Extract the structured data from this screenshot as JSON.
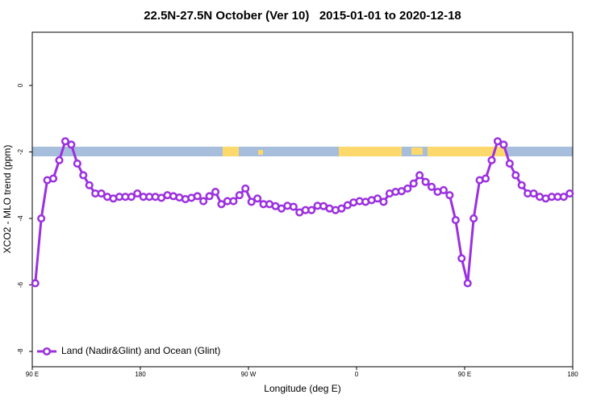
{
  "chart_data": {
    "type": "line",
    "title": "22.5N-27.5N October (Ver 10)   2015-01-01 to 2020-12-18",
    "x_label": "Longitude (deg E)",
    "y_label": "XCO2 - MLO trend (ppm)",
    "xlim": [
      90,
      540
    ],
    "ylim": [
      -8.46,
      1.6
    ],
    "xticks": [
      {
        "value": 90,
        "label": "90 E"
      },
      180,
      {
        "value": 270,
        "label": "90 W"
      },
      {
        "value": 360,
        "label": "0"
      },
      {
        "value": 450,
        "label": "90 E"
      },
      {
        "value": 540,
        "label": "180"
      }
    ],
    "yticks": [
      0,
      -2,
      -4,
      -6,
      -8
    ],
    "legend": "bottom-left",
    "x": [
      92.5,
      97.5,
      102.5,
      107.5,
      112.5,
      117.5,
      122.5,
      127.5,
      132.5,
      137.5,
      142.5,
      147.5,
      152.5,
      157.5,
      162.5,
      167.5,
      172.5,
      177.5,
      182.5,
      187.5,
      192.5,
      197.5,
      202.5,
      207.5,
      212.5,
      217.5,
      222.5,
      227.5,
      232.5,
      237.5,
      242.5,
      247.5,
      252.5,
      257.5,
      262.5,
      267.5,
      272.5,
      277.5,
      282.5,
      287.5,
      292.5,
      297.5,
      302.5,
      307.5,
      312.5,
      317.5,
      322.5,
      327.5,
      332.5,
      337.5,
      342.5,
      347.5,
      352.5,
      357.5,
      362.5,
      367.5,
      372.5,
      377.5,
      382.5,
      387.5,
      392.5,
      397.5,
      402.5,
      407.5,
      412.5,
      417.5,
      422.5,
      427.5,
      432.5,
      437.5,
      442.5,
      447.5,
      452.5,
      457.5,
      462.5,
      467.5,
      472.5,
      477.5,
      482.5,
      487.5,
      492.5,
      497.5,
      502.5,
      507.5,
      512.5,
      517.5,
      522.5,
      527.5,
      532.5,
      537.5
    ],
    "series": [
      {
        "name": "Land (Nadir&Glint) and Ocean (Glint)",
        "color": "#9b30e0",
        "values": [
          -5.95,
          -4.0,
          -2.85,
          -2.8,
          -2.25,
          -1.68,
          -1.78,
          -2.35,
          -2.7,
          -3.0,
          -3.25,
          -3.25,
          -3.35,
          -3.4,
          -3.35,
          -3.35,
          -3.35,
          -3.25,
          -3.35,
          -3.35,
          -3.35,
          -3.38,
          -3.3,
          -3.33,
          -3.37,
          -3.42,
          -3.38,
          -3.33,
          -3.48,
          -3.33,
          -3.2,
          -3.57,
          -3.48,
          -3.48,
          -3.3,
          -3.1,
          -3.5,
          -3.4,
          -3.57,
          -3.57,
          -3.63,
          -3.7,
          -3.62,
          -3.65,
          -3.82,
          -3.75,
          -3.75,
          -3.62,
          -3.63,
          -3.7,
          -3.75,
          -3.7,
          -3.6,
          -3.52,
          -3.48,
          -3.5,
          -3.45,
          -3.4,
          -3.5,
          -3.25,
          -3.2,
          -3.18,
          -3.1,
          -2.95,
          -2.7,
          -2.9,
          -3.05,
          -3.2,
          -3.15,
          -3.3,
          -4.05,
          -5.2,
          -5.95,
          -4.0,
          -2.85,
          -2.8,
          -2.25,
          -1.68,
          -1.78,
          -2.35,
          -2.7,
          -3.0,
          -3.25,
          -3.25,
          -3.35,
          -3.4,
          -3.35,
          -3.35,
          -3.35,
          -3.25
        ]
      }
    ]
  }
}
